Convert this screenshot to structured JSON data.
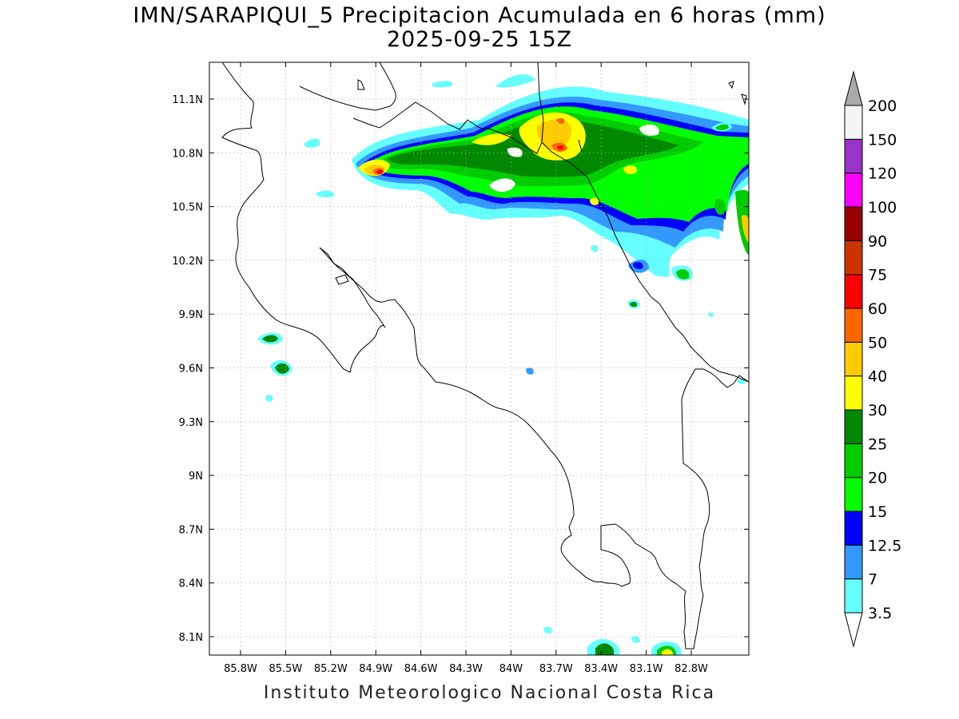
{
  "title_line1": "IMN/SARAPIQUI_5 Precipitacion Acumulada en 6 horas (mm)",
  "title_line2": "2025-09-25 15Z",
  "footer": "Instituto Meteorologico Nacional Costa Rica",
  "lon_labels": [
    "85.8W",
    "85.5W",
    "85.2W",
    "84.9W",
    "84.6W",
    "84.3W",
    "84W",
    "83.7W",
    "83.4W",
    "83.1W",
    "82.8W"
  ],
  "lat_labels": [
    "11.1N",
    "10.8N",
    "10.5N",
    "10.2N",
    "9.9N",
    "9.6N",
    "9.3N",
    "9N",
    "8.7N",
    "8.4N",
    "8.1N"
  ],
  "colorbar": {
    "labels": [
      "3.5",
      "7",
      "12.5",
      "15",
      "20",
      "25",
      "30",
      "40",
      "50",
      "60",
      "75",
      "90",
      "100",
      "120",
      "150",
      "200"
    ],
    "colors": [
      "#ffffff",
      "#66ffff",
      "#3399ff",
      "#0000ff",
      "#00ff00",
      "#00cc00",
      "#008800",
      "#ffff00",
      "#ffcc00",
      "#ff6600",
      "#ff0000",
      "#cc3300",
      "#990000",
      "#ff00ff",
      "#9933cc",
      "#f5f5f5"
    ],
    "top_arrow_color": "#aaaaaa"
  }
}
